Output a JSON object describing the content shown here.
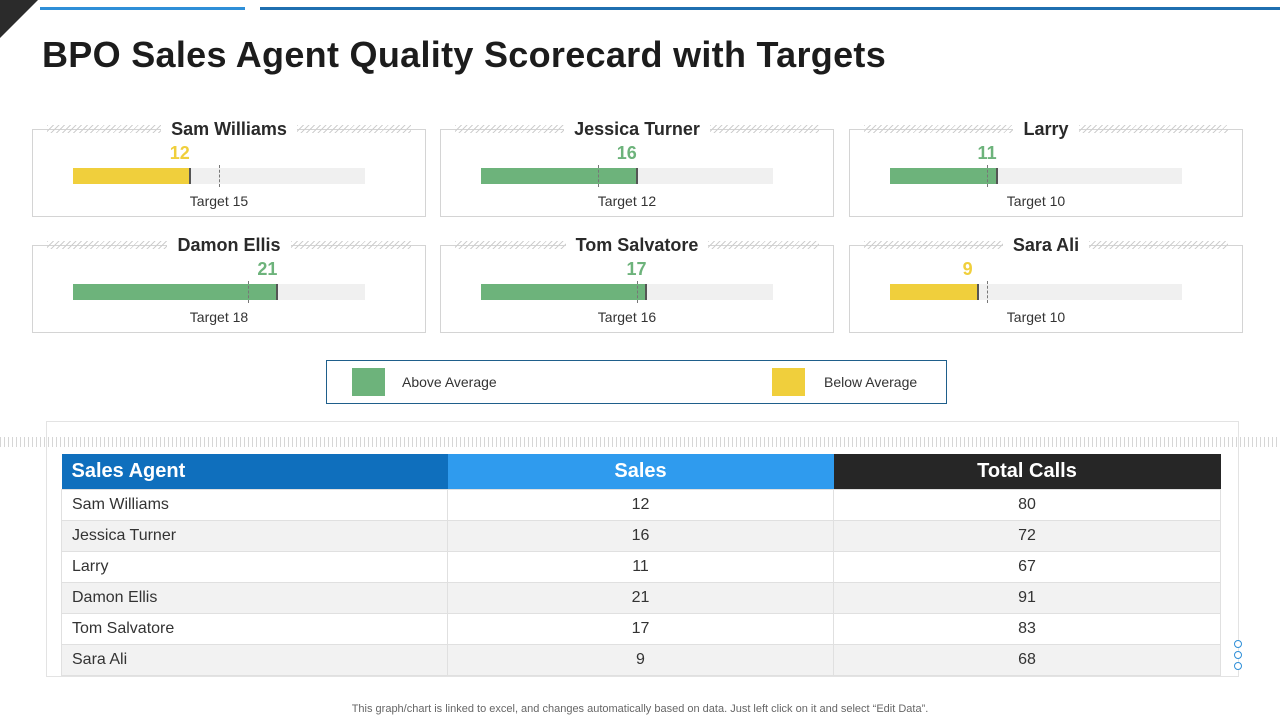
{
  "title": "BPO Sales Agent Quality Scorecard with Targets",
  "colors": {
    "above": "#6db37b",
    "below": "#f0cf3c",
    "header_agent": "#0f6fbd",
    "header_sales": "#2f9bee",
    "header_calls": "#262626"
  },
  "chart_data": {
    "type": "bar",
    "categories": [
      "Sam Williams",
      "Jessica Turner",
      "Larry",
      "Damon Ellis",
      "Tom Salvatore",
      "Sara Ali"
    ],
    "series": [
      {
        "name": "Sales",
        "values": [
          12,
          16,
          11,
          21,
          17,
          9
        ]
      },
      {
        "name": "Target",
        "values": [
          15,
          12,
          10,
          18,
          16,
          10
        ]
      }
    ],
    "status": [
      "below",
      "above",
      "above",
      "above",
      "above",
      "below"
    ],
    "xlim": [
      0,
      30
    ],
    "target_prefix": "Target"
  },
  "legend": {
    "above_label": "Above Average",
    "below_label": "Below Average"
  },
  "table": {
    "headers": [
      "Sales Agent",
      "Sales",
      "Total Calls"
    ],
    "rows": [
      [
        "Sam Williams",
        "12",
        "80"
      ],
      [
        "Jessica Turner",
        "16",
        "72"
      ],
      [
        "Larry",
        "11",
        "67"
      ],
      [
        "Damon Ellis",
        "21",
        "91"
      ],
      [
        "Tom Salvatore",
        "17",
        "83"
      ],
      [
        "Sara Ali",
        "9",
        "68"
      ]
    ]
  },
  "footnote": "This graph/chart is linked to excel,  and changes automatically based on data. Just left click on it and select “Edit Data”."
}
